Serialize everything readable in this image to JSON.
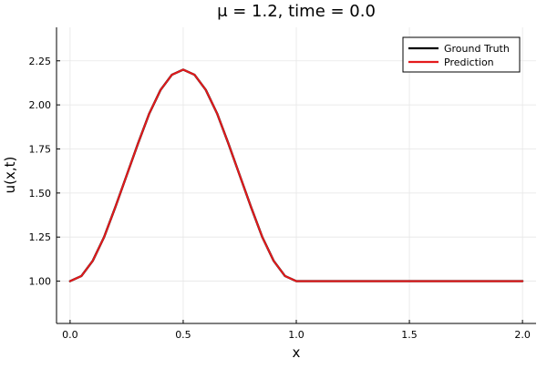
{
  "chart_data": {
    "type": "line",
    "title": "μ = 1.2, time = 0.0",
    "xlabel": "x",
    "ylabel": "u(x,t)",
    "xlim": [
      -0.06,
      2.06
    ],
    "ylim": [
      0.76,
      2.44
    ],
    "xticks": [
      {
        "value": 0.0,
        "label": "0.0"
      },
      {
        "value": 0.5,
        "label": "0.5"
      },
      {
        "value": 1.0,
        "label": "1.0"
      },
      {
        "value": 1.5,
        "label": "1.5"
      },
      {
        "value": 2.0,
        "label": "2.0"
      }
    ],
    "yticks": [
      {
        "value": 1.0,
        "label": "1.00"
      },
      {
        "value": 1.25,
        "label": "1.25"
      },
      {
        "value": 1.5,
        "label": "1.50"
      },
      {
        "value": 1.75,
        "label": "1.75"
      },
      {
        "value": 2.0,
        "label": "2.00"
      },
      {
        "value": 2.25,
        "label": "2.25"
      }
    ],
    "grid": true,
    "legend_position": "top-right",
    "x": [
      0.0,
      0.05,
      0.1,
      0.15,
      0.2,
      0.25,
      0.3,
      0.35,
      0.4,
      0.45,
      0.5,
      0.55,
      0.6,
      0.65,
      0.7,
      0.75,
      0.8,
      0.85,
      0.9,
      0.95,
      1.0,
      1.1,
      1.2,
      1.3,
      1.4,
      1.5,
      1.6,
      1.7,
      1.8,
      1.9,
      2.0
    ],
    "series": [
      {
        "name": "Ground Truth",
        "color": "#000000",
        "values": [
          1.0,
          1.029,
          1.115,
          1.249,
          1.42,
          1.6,
          1.78,
          1.951,
          2.085,
          2.171,
          2.2,
          2.171,
          2.085,
          1.951,
          1.78,
          1.6,
          1.42,
          1.249,
          1.115,
          1.029,
          1.0,
          1.0,
          1.0,
          1.0,
          1.0,
          1.0,
          1.0,
          1.0,
          1.0,
          1.0,
          1.0
        ]
      },
      {
        "name": "Prediction",
        "color": "#e41a1c",
        "values": [
          1.0,
          1.029,
          1.115,
          1.249,
          1.42,
          1.6,
          1.78,
          1.951,
          2.085,
          2.171,
          2.2,
          2.171,
          2.085,
          1.951,
          1.78,
          1.6,
          1.42,
          1.249,
          1.115,
          1.029,
          1.0,
          1.0,
          1.0,
          1.0,
          1.0,
          1.0,
          1.0,
          1.0,
          1.0,
          1.0,
          1.0
        ]
      }
    ]
  }
}
